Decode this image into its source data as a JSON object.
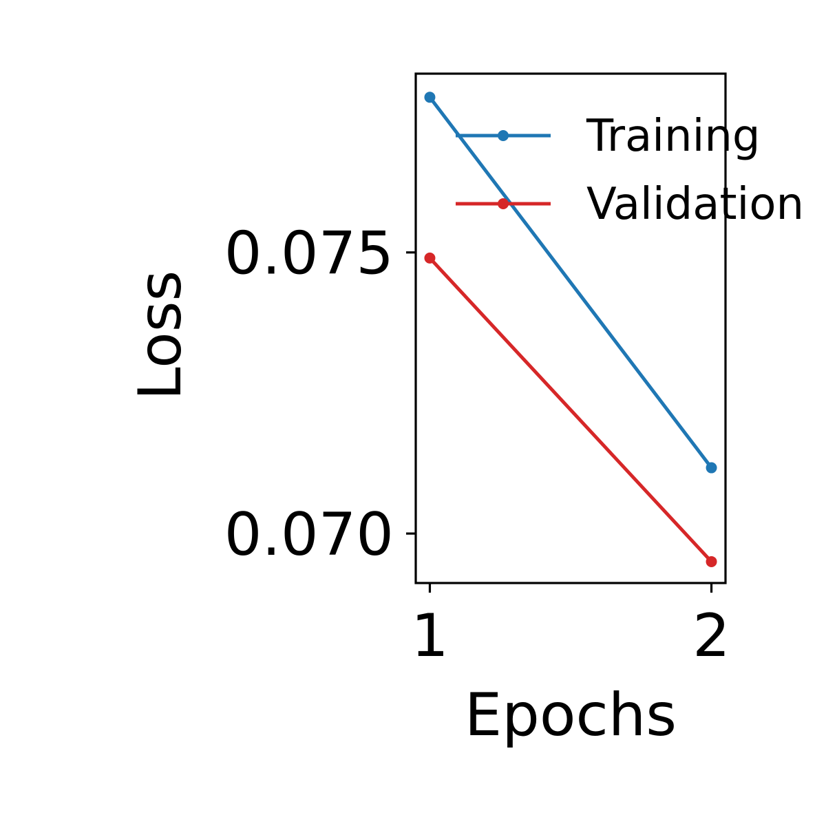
{
  "chart_data": {
    "type": "line",
    "title": "",
    "xlabel": "Epochs",
    "ylabel": "Loss",
    "x": [
      1,
      2
    ],
    "x_ticks": [
      1,
      2
    ],
    "x_tick_labels": [
      "1",
      "2"
    ],
    "xlim": [
      0.95,
      2.05
    ],
    "y_ticks": [
      0.07,
      0.075
    ],
    "y_tick_labels": [
      "0.070",
      "0.075"
    ],
    "ylim": [
      0.06912,
      0.07818
    ],
    "grid": false,
    "legend_position": "top-right",
    "series": [
      {
        "name": "Training",
        "color": "#1f77b4",
        "marker": "circle",
        "values": [
          0.07776,
          0.07117
        ]
      },
      {
        "name": "Validation",
        "color": "#d62728",
        "marker": "circle",
        "values": [
          0.0749,
          0.0695
        ]
      }
    ]
  }
}
